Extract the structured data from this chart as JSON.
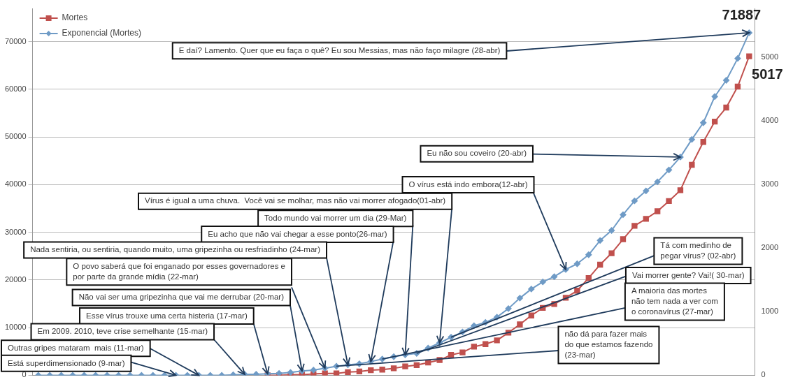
{
  "chart_data": {
    "type": "line",
    "categories": [
      null,
      null,
      null,
      null,
      null,
      null,
      null,
      null,
      null,
      null,
      null,
      null,
      null,
      null,
      null,
      null,
      null,
      null,
      null,
      null,
      null,
      null,
      null,
      null,
      null,
      null,
      null,
      null,
      null,
      null,
      null,
      null,
      null,
      null,
      null,
      null,
      null,
      null,
      null,
      null,
      null,
      null,
      null,
      null,
      null,
      null,
      null,
      null,
      null,
      null,
      null,
      null,
      null,
      null,
      null,
      null,
      null,
      null,
      null,
      null,
      null,
      null,
      null
    ],
    "series": [
      {
        "name": "Mortes",
        "color": "#c0504d",
        "axis": "y2",
        "marker": "square",
        "values": [
          null,
          null,
          null,
          null,
          null,
          null,
          null,
          null,
          null,
          null,
          null,
          null,
          null,
          null,
          null,
          null,
          null,
          null,
          null,
          null,
          0,
          0,
          10,
          10,
          20,
          30,
          30,
          50,
          60,
          80,
          90,
          110,
          140,
          160,
          200,
          240,
          320,
          360,
          450,
          490,
          550,
          670,
          800,
          940,
          1060,
          1120,
          1220,
          1330,
          1530,
          1740,
          1920,
          2140,
          2350,
          2460,
          2580,
          2740,
          2910,
          3310,
          3670,
          3990,
          4210,
          4540,
          5017
        ],
        "value_labels": [
          null,
          null,
          null,
          null,
          null,
          null,
          null,
          null,
          null,
          null,
          null,
          null,
          null,
          null,
          null,
          null,
          null,
          null,
          null,
          null,
          null,
          null,
          null,
          null,
          null,
          null,
          null,
          null,
          null,
          null,
          null,
          null,
          null,
          null,
          null,
          null,
          null,
          null,
          null,
          null,
          null,
          null,
          null,
          null,
          null,
          null,
          null,
          null,
          null,
          null,
          null,
          null,
          null,
          null,
          null,
          null,
          null,
          null,
          null,
          null,
          null,
          null,
          "5017"
        ]
      },
      {
        "name": "Exponencial (Mortes)",
        "color": "#6f9bc6",
        "marker": "diamond",
        "values": [
          0,
          0,
          0,
          0,
          0,
          0,
          0,
          0,
          0,
          0,
          0,
          0,
          0,
          0,
          0,
          0,
          0,
          100,
          200,
          200,
          300,
          400,
          600,
          900,
          1100,
          1500,
          1900,
          2200,
          2400,
          2900,
          3400,
          3900,
          4300,
          4600,
          5700,
          6800,
          8000,
          9100,
          10400,
          11100,
          12200,
          14000,
          16200,
          18100,
          19600,
          20700,
          22200,
          23400,
          25300,
          28300,
          30400,
          33700,
          36600,
          38700,
          40600,
          43100,
          45800,
          49500,
          53000,
          58500,
          61900,
          66500,
          71887
        ],
        "value_labels": [
          null,
          null,
          null,
          null,
          null,
          null,
          null,
          null,
          null,
          null,
          null,
          null,
          null,
          null,
          null,
          null,
          null,
          null,
          null,
          null,
          null,
          null,
          null,
          null,
          null,
          null,
          null,
          null,
          null,
          null,
          null,
          null,
          null,
          null,
          null,
          null,
          null,
          null,
          null,
          null,
          null,
          null,
          null,
          null,
          null,
          null,
          null,
          null,
          null,
          null,
          null,
          null,
          null,
          null,
          null,
          null,
          null,
          null,
          null,
          null,
          null,
          null,
          "71887"
        ]
      }
    ],
    "ylim": [
      0,
      77000
    ],
    "yticks": [
      0,
      10000,
      20000,
      30000,
      40000,
      50000,
      60000,
      70000
    ],
    "y2lim": [
      0,
      5770
    ],
    "y2ticks": [
      0,
      1000,
      2000,
      3000,
      4000,
      5000
    ],
    "grid": "y",
    "legend": "top left",
    "annotations": [
      "E daí? Lamento. Quer que eu faça o quê? Eu sou Messias, mas não faço milagre (28-abr)",
      "Eu não sou coveiro (20-abr)",
      "O vírus está indo embora(12-abr)",
      "Vírus é igual a uma chuva.  Você vai se molhar, mas não vai morrer afogado(01-abr)",
      "Todo mundo vai morrer um dia (29-Mar)",
      "Eu acho que não vai chegar a esse ponto(26-mar)",
      "Nada sentiria, ou sentiria, quando muito, uma gripezinha ou resfriadinho (24-mar)",
      "O povo saberá que foi enganado por esses governadores e\npor parte da grande mídia (22-mar)",
      "Não vai ser uma gripezinha que vai me derrubar (20-mar)",
      "Esse vírus trouxe uma certa histeria (17-mar)",
      "Em 2009. 2010, teve crise semelhante (15-mar)",
      "Outras gripes mataram  mais (11-mar)",
      "Está superdimensionado (9-mar)",
      "Tá com medinho de\npegar vírus? (02-abr)",
      "Vai morrer gente? Vai!( 30-mar)",
      "A maioria das mortes\nnão tem nada a ver com\no coronavírus (27-mar)",
      "não dá para fazer mais\ndo que estamos fazendo\n(23-mar)"
    ]
  }
}
